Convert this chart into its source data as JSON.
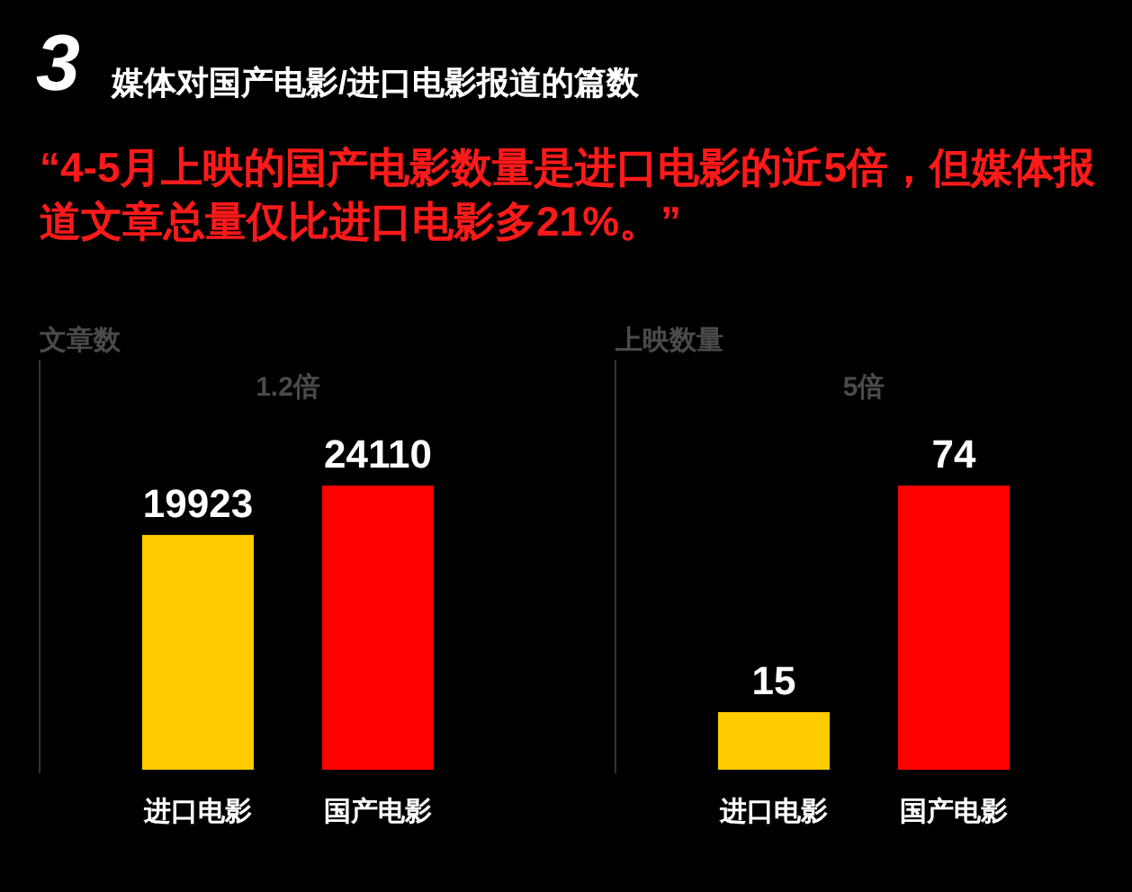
{
  "chart_data": [
    {
      "type": "bar",
      "title": "媒体对国产电影/进口电影报道的篇数",
      "annotations": [
        "3",
        "“4-5月上映的国产电影数量是进口电影的近5倍，但媒体报道文章总量仅比进口电影多21%。”"
      ],
      "ylabel": "文章数",
      "subtitle": "1.2倍",
      "categories": [
        "进口电影",
        "国产电影"
      ],
      "values": [
        19923,
        24110
      ],
      "colors": [
        "#ffcc00",
        "#ff0000"
      ],
      "data_labels": true
    },
    {
      "type": "bar",
      "ylabel": "上映数量",
      "subtitle": "5倍",
      "categories": [
        "进口电影",
        "国产电影"
      ],
      "values": [
        15,
        74
      ],
      "colors": [
        "#ffcc00",
        "#ff0000"
      ],
      "data_labels": true
    }
  ]
}
